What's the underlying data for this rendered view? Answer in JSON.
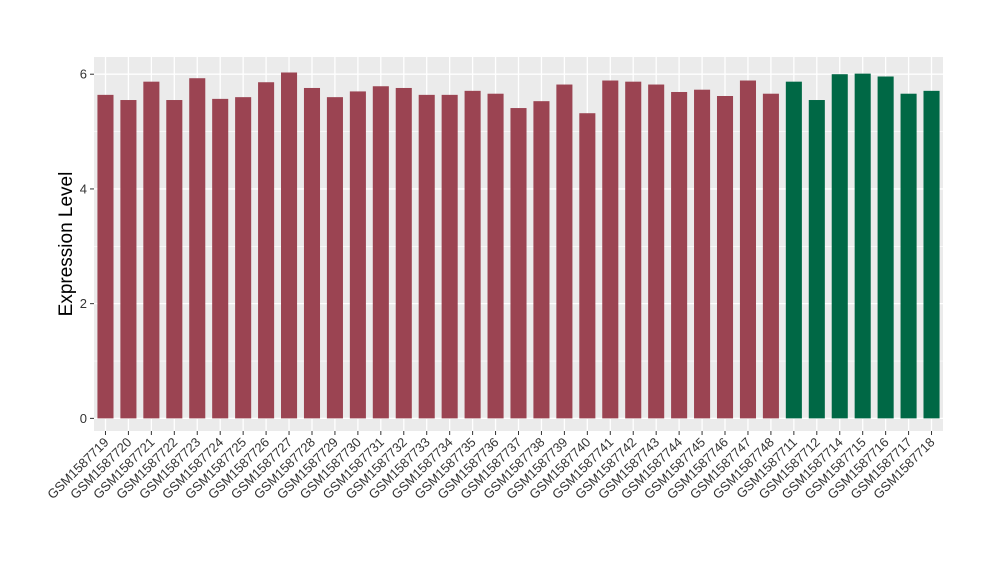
{
  "chart_data": {
    "type": "bar",
    "title": "",
    "xlabel": "",
    "ylabel": "Expression Level",
    "ylim": [
      -0.22,
      6.3
    ],
    "yticks": [
      0,
      2,
      4,
      6
    ],
    "grid": true,
    "legend": "none",
    "colors": {
      "group_a": "#9b4452",
      "group_b": "#006845",
      "panel": "#ebebeb",
      "gridline": "#ffffff"
    },
    "categories": [
      "GSM1587719",
      "GSM1587720",
      "GSM1587721",
      "GSM1587722",
      "GSM1587723",
      "GSM1587724",
      "GSM1587725",
      "GSM1587726",
      "GSM1587727",
      "GSM1587728",
      "GSM1587729",
      "GSM1587730",
      "GSM1587731",
      "GSM1587732",
      "GSM1587733",
      "GSM1587734",
      "GSM1587735",
      "GSM1587736",
      "GSM1587737",
      "GSM1587738",
      "GSM1587739",
      "GSM1587740",
      "GSM1587741",
      "GSM1587742",
      "GSM1587743",
      "GSM1587744",
      "GSM1587745",
      "GSM1587746",
      "GSM1587747",
      "GSM1587748",
      "GSM1587711",
      "GSM1587712",
      "GSM1587714",
      "GSM1587715",
      "GSM1587716",
      "GSM1587717",
      "GSM1587718"
    ],
    "values": [
      5.64,
      5.55,
      5.87,
      5.55,
      5.93,
      5.57,
      5.6,
      5.86,
      6.03,
      5.76,
      5.6,
      5.7,
      5.79,
      5.76,
      5.64,
      5.64,
      5.71,
      5.66,
      5.41,
      5.53,
      5.82,
      5.32,
      5.89,
      5.87,
      5.82,
      5.69,
      5.73,
      5.62,
      5.89,
      5.66,
      5.87,
      5.55,
      6.0,
      6.01,
      5.96,
      5.66,
      5.71
    ],
    "groups": [
      "a",
      "a",
      "a",
      "a",
      "a",
      "a",
      "a",
      "a",
      "a",
      "a",
      "a",
      "a",
      "a",
      "a",
      "a",
      "a",
      "a",
      "a",
      "a",
      "a",
      "a",
      "a",
      "a",
      "a",
      "a",
      "a",
      "a",
      "a",
      "a",
      "a",
      "b",
      "b",
      "b",
      "b",
      "b",
      "b",
      "b"
    ]
  }
}
